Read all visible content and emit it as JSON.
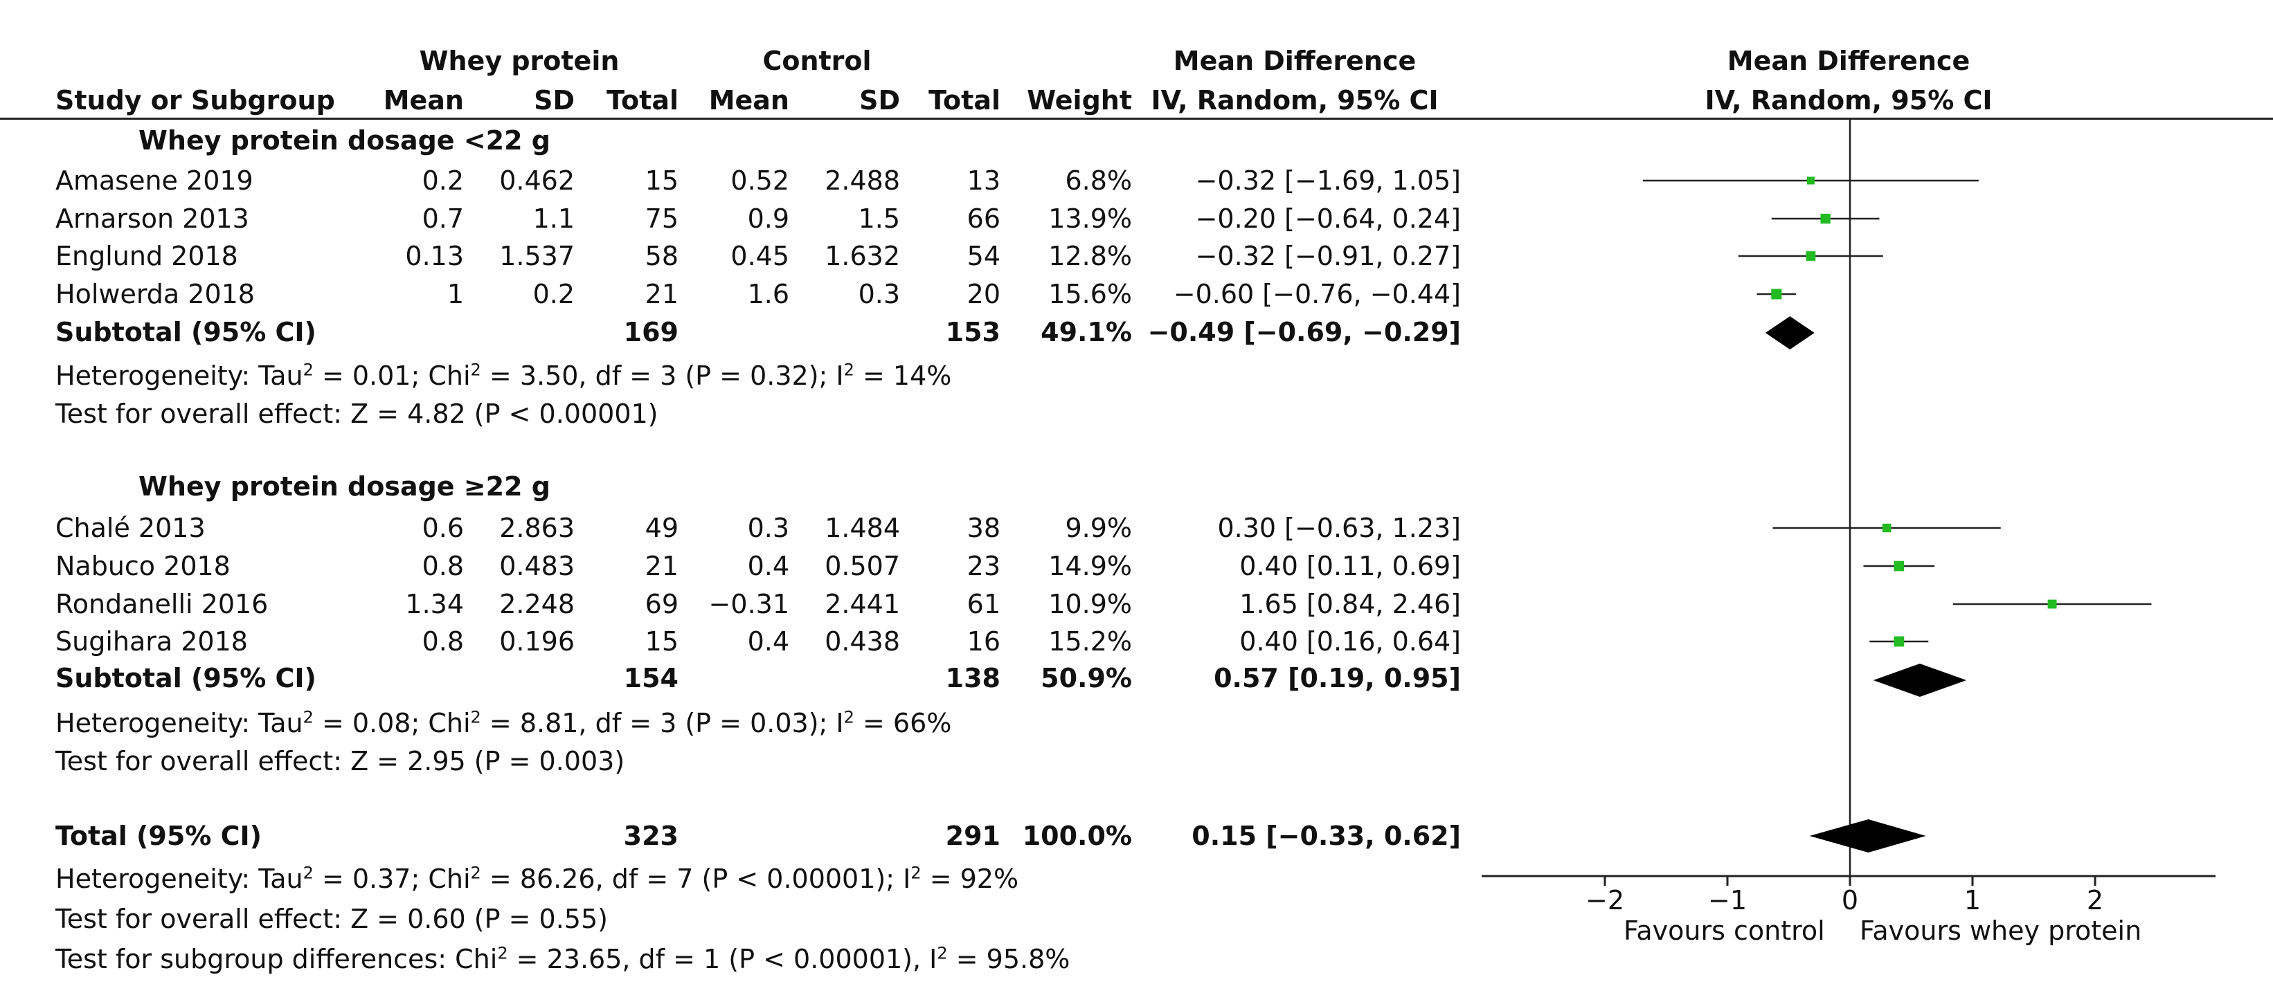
{
  "header": {
    "group1": "Whey protein",
    "group2": "Control",
    "md_title_left": "Mean Difference",
    "md_sub_left": "IV, Random, 95% CI",
    "md_title_right": "Mean Difference",
    "md_sub_right": "IV, Random, 95% CI",
    "col_study": "Study or Subgroup",
    "col_mean1": "Mean",
    "col_sd1": "SD",
    "col_total1": "Total",
    "col_mean2": "Mean",
    "col_sd2": "SD",
    "col_total2": "Total",
    "col_weight": "Weight"
  },
  "subgroups": [
    {
      "title": "Whey protein dosage <22 g",
      "studies": [
        {
          "name": "Amasene 2019",
          "mean1": "0.2",
          "sd1": "0.462",
          "n1": "15",
          "mean2": "0.52",
          "sd2": "2.488",
          "n2": "13",
          "weight": "6.8%",
          "ci": "−0.32 [−1.69, 1.05]"
        },
        {
          "name": "Arnarson 2013",
          "mean1": "0.7",
          "sd1": "1.1",
          "n1": "75",
          "mean2": "0.9",
          "sd2": "1.5",
          "n2": "66",
          "weight": "13.9%",
          "ci": "−0.20 [−0.64, 0.24]"
        },
        {
          "name": "Englund 2018",
          "mean1": "0.13",
          "sd1": "1.537",
          "n1": "58",
          "mean2": "0.45",
          "sd2": "1.632",
          "n2": "54",
          "weight": "12.8%",
          "ci": "−0.32 [−0.91, 0.27]"
        },
        {
          "name": "Holwerda 2018",
          "mean1": "1",
          "sd1": "0.2",
          "n1": "21",
          "mean2": "1.6",
          "sd2": "0.3",
          "n2": "20",
          "weight": "15.6%",
          "ci": "−0.60 [−0.76, −0.44]"
        }
      ],
      "subtotal": {
        "label": "Subtotal (95% CI)",
        "n1": "169",
        "n2": "153",
        "weight": "49.1%",
        "ci": "−0.49 [−0.69, −0.29]"
      },
      "heterogeneity": {
        "prefix": "Heterogeneity: Tau",
        "mid1": " = 0.01; Chi",
        "mid2": " = 3.50, df = 3 (P = 0.32); I",
        "end": " = 14%"
      },
      "overall": "Test for overall effect: Z = 4.82 (P < 0.00001)"
    },
    {
      "title": "Whey protein dosage ≥22 g",
      "studies": [
        {
          "name": "Chalé 2013",
          "mean1": "0.6",
          "sd1": "2.863",
          "n1": "49",
          "mean2": "0.3",
          "sd2": "1.484",
          "n2": "38",
          "weight": "9.9%",
          "ci": "0.30 [−0.63, 1.23]"
        },
        {
          "name": "Nabuco 2018",
          "mean1": "0.8",
          "sd1": "0.483",
          "n1": "21",
          "mean2": "0.4",
          "sd2": "0.507",
          "n2": "23",
          "weight": "14.9%",
          "ci": "0.40 [0.11, 0.69]"
        },
        {
          "name": "Rondanelli 2016",
          "mean1": "1.34",
          "sd1": "2.248",
          "n1": "69",
          "mean2": "−0.31",
          "sd2": "2.441",
          "n2": "61",
          "weight": "10.9%",
          "ci": "1.65 [0.84, 2.46]"
        },
        {
          "name": "Sugihara 2018",
          "mean1": "0.8",
          "sd1": "0.196",
          "n1": "15",
          "mean2": "0.4",
          "sd2": "0.438",
          "n2": "16",
          "weight": "15.2%",
          "ci": "0.40 [0.16, 0.64]"
        }
      ],
      "subtotal": {
        "label": "Subtotal (95% CI)",
        "n1": "154",
        "n2": "138",
        "weight": "50.9%",
        "ci": "0.57 [0.19, 0.95]"
      },
      "heterogeneity": {
        "prefix": "Heterogeneity: Tau",
        "mid1": " = 0.08; Chi",
        "mid2": " = 8.81, df = 3 (P = 0.03); I",
        "end": " = 66%"
      },
      "overall": "Test for overall effect: Z = 2.95 (P = 0.003)"
    }
  ],
  "total": {
    "label": "Total (95% CI)",
    "n1": "323",
    "n2": "291",
    "weight": "100.0%",
    "ci": "0.15 [−0.33, 0.62]",
    "heterogeneity": {
      "prefix": "Heterogeneity: Tau",
      "mid1": " = 0.37; Chi",
      "mid2": " = 86.26, df = 7 (P < 0.00001); I",
      "end": " = 92%"
    },
    "overall": "Test for overall effect: Z = 0.60 (P = 0.55)",
    "subgroup_diff": {
      "prefix": "Test for subgroup differences: Chi",
      "mid": " = 23.65, df = 1 (P < 0.00001), I",
      "end": " = 95.8%"
    }
  },
  "sup2": "2",
  "axis_labels": {
    "left": "Favours control",
    "right": "Favours whey protein"
  },
  "colors": {
    "marker": "#22bb22",
    "diamond": "#000000",
    "line": "#222222"
  },
  "chart_data": {
    "type": "forest",
    "title": "Mean Difference IV, Random, 95% CI",
    "xlim": [
      -3.0,
      3.0
    ],
    "ticks": [
      -2,
      -1,
      0,
      1,
      2
    ],
    "tick_labels": [
      "−2",
      "−1",
      "0",
      "1",
      "2"
    ],
    "studies": [
      {
        "name": "Amasene 2019",
        "md": -0.32,
        "lo": -1.69,
        "hi": 1.05,
        "weight": 6.8
      },
      {
        "name": "Arnarson 2013",
        "md": -0.2,
        "lo": -0.64,
        "hi": 0.24,
        "weight": 13.9
      },
      {
        "name": "Englund 2018",
        "md": -0.32,
        "lo": -0.91,
        "hi": 0.27,
        "weight": 12.8
      },
      {
        "name": "Holwerda 2018",
        "md": -0.6,
        "lo": -0.76,
        "hi": -0.44,
        "weight": 15.6
      },
      {
        "name": "Chalé 2013",
        "md": 0.3,
        "lo": -0.63,
        "hi": 1.23,
        "weight": 9.9
      },
      {
        "name": "Nabuco 2018",
        "md": 0.4,
        "lo": 0.11,
        "hi": 0.69,
        "weight": 14.9
      },
      {
        "name": "Rondanelli 2016",
        "md": 1.65,
        "lo": 0.84,
        "hi": 2.46,
        "weight": 10.9
      },
      {
        "name": "Sugihara 2018",
        "md": 0.4,
        "lo": 0.16,
        "hi": 0.64,
        "weight": 15.2
      }
    ],
    "pooled": [
      {
        "name": "Subtotal <22 g",
        "md": -0.49,
        "lo": -0.69,
        "hi": -0.29
      },
      {
        "name": "Subtotal ≥22 g",
        "md": 0.57,
        "lo": 0.19,
        "hi": 0.95
      },
      {
        "name": "Total",
        "md": 0.15,
        "lo": -0.33,
        "hi": 0.62
      }
    ]
  }
}
